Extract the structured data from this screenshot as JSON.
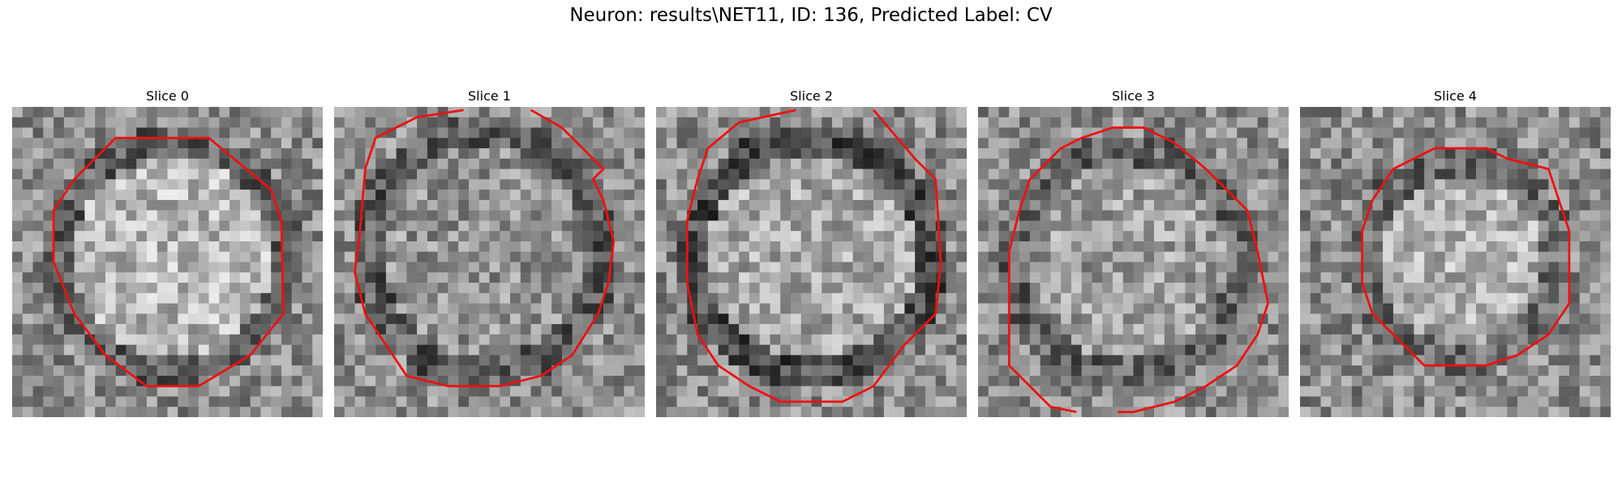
{
  "figure": {
    "title": "Neuron: results\\NET11, ID: 136, Predicted Label: CV",
    "contour_color": "#ee1111",
    "colormap": "gray",
    "panels": [
      {
        "title": "Slice 0"
      },
      {
        "title": "Slice 1"
      },
      {
        "title": "Slice 2"
      },
      {
        "title": "Slice 3"
      },
      {
        "title": "Slice 4"
      }
    ]
  }
}
